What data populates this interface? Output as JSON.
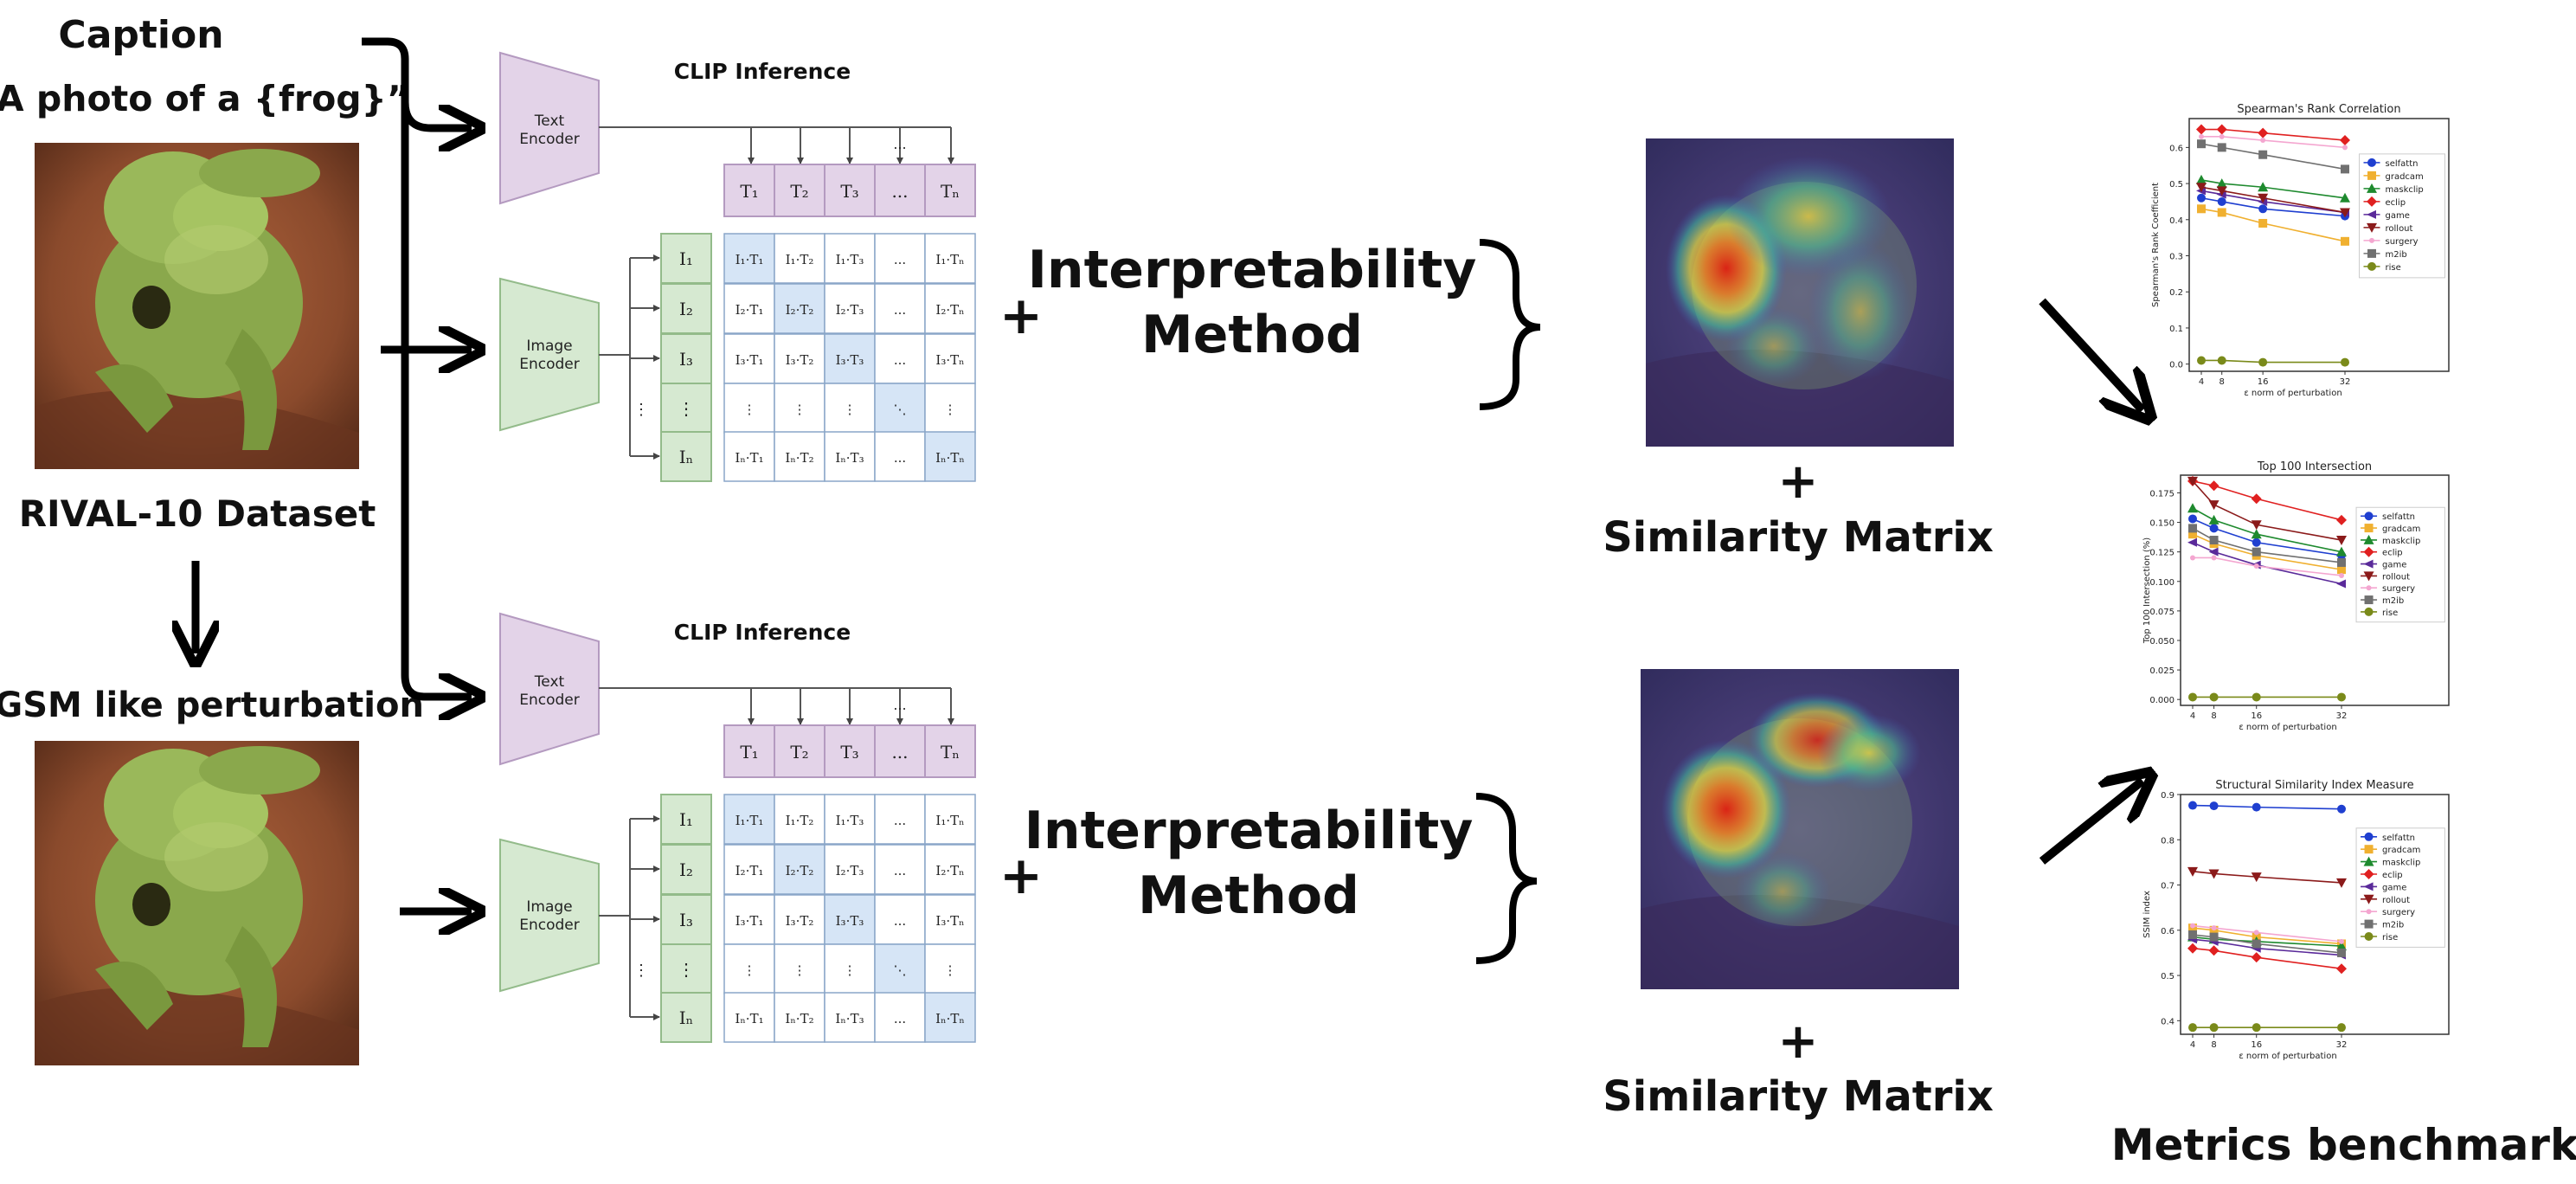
{
  "left": {
    "caption_label": "Caption",
    "caption_text": "“A photo of a {frog}”",
    "dataset_label": "RIVAL-10 Dataset",
    "perturbation_label": "FGSM like perturbation"
  },
  "clip": {
    "title": "CLIP Inference",
    "text_encoder": [
      "Text",
      "Encoder"
    ],
    "image_encoder": [
      "Image",
      "Encoder"
    ],
    "t_headers": [
      "T₁",
      "T₂",
      "T₃",
      "...",
      "Tₙ"
    ],
    "i_headers": [
      "I₁",
      "I₂",
      "I₃",
      "⋮",
      "Iₙ"
    ],
    "matrix": [
      [
        "I₁·T₁",
        "I₁·T₂",
        "I₁·T₃",
        "...",
        "I₁·Tₙ"
      ],
      [
        "I₂·T₁",
        "I₂·T₂",
        "I₂·T₃",
        "...",
        "I₂·Tₙ"
      ],
      [
        "I₃·T₁",
        "I₃·T₂",
        "I₃·T₃",
        "...",
        "I₃·Tₙ"
      ],
      [
        "⋮",
        "⋮",
        "⋮",
        "⋱",
        "⋮"
      ],
      [
        "Iₙ·T₁",
        "Iₙ·T₂",
        "Iₙ·T₃",
        "...",
        "Iₙ·Tₙ"
      ]
    ],
    "dots_label": "..."
  },
  "middle": {
    "plus": "+",
    "method_line1": "Interpretability",
    "method_line2": "Method",
    "similarity_plus": "+",
    "similarity_label": "Similarity Matrix"
  },
  "benchmark_label": "Metrics benchmark",
  "legend_labels": [
    "selfattn",
    "gradcam",
    "maskclip",
    "eclip",
    "game",
    "rollout",
    "surgery",
    "m2ib",
    "rise"
  ],
  "colors": {
    "text_encoder_fill": "#e3d3e8",
    "text_encoder_stroke": "#b49ac0",
    "image_encoder_fill": "#d6e9d1",
    "image_encoder_stroke": "#93bb8a",
    "diag_fill": "#d6e5f6",
    "rock": "#8a4a2c",
    "frog": "#8aa84c"
  },
  "chart_data": [
    {
      "type": "line",
      "title": "Spearman's Rank Correlation",
      "xlabel": "ε norm of perturbation",
      "ylabel": "Spearman's Rank Coefficient",
      "x": [
        4,
        8,
        16,
        32
      ],
      "xticks": [
        "4",
        "8",
        "16",
        "32"
      ],
      "ylim": [
        -0.02,
        0.68
      ],
      "yticks": [
        0.0,
        0.1,
        0.2,
        0.3,
        0.4,
        0.5,
        0.6
      ],
      "ytick_labels": [
        "0.0",
        "0.1",
        "0.2",
        "0.3",
        "0.4",
        "0.5",
        "0.6"
      ],
      "legend": "right",
      "series": [
        {
          "name": "selfattn",
          "color": "#1f3fd0",
          "marker": "o",
          "values": [
            0.46,
            0.45,
            0.43,
            0.41
          ]
        },
        {
          "name": "gradcam",
          "color": "#f0b030",
          "marker": "s",
          "values": [
            0.43,
            0.42,
            0.39,
            0.34
          ]
        },
        {
          "name": "maskclip",
          "color": "#1e8a2e",
          "marker": "^",
          "values": [
            0.51,
            0.5,
            0.49,
            0.46
          ]
        },
        {
          "name": "eclip",
          "color": "#e02020",
          "marker": "D",
          "values": [
            0.65,
            0.65,
            0.64,
            0.62
          ]
        },
        {
          "name": "game",
          "color": "#5a2a9a",
          "marker": "<",
          "values": [
            0.48,
            0.47,
            0.45,
            0.42
          ]
        },
        {
          "name": "rollout",
          "color": "#8b1a1a",
          "marker": "v",
          "values": [
            0.49,
            0.48,
            0.46,
            0.42
          ]
        },
        {
          "name": "surgery",
          "color": "#f4a6d0",
          "marker": ".",
          "values": [
            0.63,
            0.63,
            0.62,
            0.6
          ]
        },
        {
          "name": "m2ib",
          "color": "#707070",
          "marker": "s",
          "values": [
            0.61,
            0.6,
            0.58,
            0.54
          ]
        },
        {
          "name": "rise",
          "color": "#7a8a1a",
          "marker": "o",
          "values": [
            0.01,
            0.01,
            0.005,
            0.005
          ]
        }
      ]
    },
    {
      "type": "line",
      "title": "Top 100 Intersection",
      "xlabel": "ε norm of perturbation",
      "ylabel": "Top 100 Intersection (%)",
      "x": [
        4,
        8,
        16,
        32
      ],
      "xticks": [
        "4",
        "8",
        "16",
        "32"
      ],
      "ylim": [
        -0.005,
        0.19
      ],
      "yticks": [
        0.0,
        0.025,
        0.05,
        0.075,
        0.1,
        0.125,
        0.15,
        0.175
      ],
      "ytick_labels": [
        "0.000",
        "0.025",
        "0.050",
        "0.075",
        "0.100",
        "0.125",
        "0.150",
        "0.175"
      ],
      "legend": "right",
      "series": [
        {
          "name": "selfattn",
          "color": "#1f3fd0",
          "marker": "o",
          "values": [
            0.153,
            0.145,
            0.133,
            0.122
          ]
        },
        {
          "name": "gradcam",
          "color": "#f0b030",
          "marker": "s",
          "values": [
            0.14,
            0.132,
            0.122,
            0.11
          ]
        },
        {
          "name": "maskclip",
          "color": "#1e8a2e",
          "marker": "^",
          "values": [
            0.162,
            0.152,
            0.14,
            0.125
          ]
        },
        {
          "name": "eclip",
          "color": "#e02020",
          "marker": "D",
          "values": [
            0.185,
            0.181,
            0.17,
            0.152
          ]
        },
        {
          "name": "game",
          "color": "#5a2a9a",
          "marker": "<",
          "values": [
            0.133,
            0.125,
            0.114,
            0.098
          ]
        },
        {
          "name": "rollout",
          "color": "#8b1a1a",
          "marker": "v",
          "values": [
            0.185,
            0.165,
            0.148,
            0.135
          ]
        },
        {
          "name": "surgery",
          "color": "#f4a6d0",
          "marker": ".",
          "values": [
            0.12,
            0.12,
            0.113,
            0.105
          ]
        },
        {
          "name": "m2ib",
          "color": "#707070",
          "marker": "s",
          "values": [
            0.145,
            0.135,
            0.125,
            0.116
          ]
        },
        {
          "name": "rise",
          "color": "#7a8a1a",
          "marker": "o",
          "values": [
            0.002,
            0.002,
            0.002,
            0.002
          ]
        }
      ]
    },
    {
      "type": "line",
      "title": "Structural Similarity Index Measure",
      "xlabel": "ε norm of perturbation",
      "ylabel": "SSIM index",
      "x": [
        4,
        8,
        16,
        32
      ],
      "xticks": [
        "4",
        "8",
        "16",
        "32"
      ],
      "ylim": [
        0.37,
        0.9
      ],
      "yticks": [
        0.4,
        0.5,
        0.6,
        0.7,
        0.8,
        0.9
      ],
      "ytick_labels": [
        "0.4",
        "0.5",
        "0.6",
        "0.7",
        "0.8",
        "0.9"
      ],
      "legend": "right",
      "series": [
        {
          "name": "selfattn",
          "color": "#1f3fd0",
          "marker": "o",
          "values": [
            0.876,
            0.875,
            0.872,
            0.868
          ]
        },
        {
          "name": "gradcam",
          "color": "#f0b030",
          "marker": "s",
          "values": [
            0.605,
            0.6,
            0.585,
            0.57
          ]
        },
        {
          "name": "maskclip",
          "color": "#1e8a2e",
          "marker": "^",
          "values": [
            0.585,
            0.58,
            0.575,
            0.565
          ]
        },
        {
          "name": "eclip",
          "color": "#e02020",
          "marker": "D",
          "values": [
            0.56,
            0.555,
            0.54,
            0.515
          ]
        },
        {
          "name": "game",
          "color": "#5a2a9a",
          "marker": "<",
          "values": [
            0.58,
            0.575,
            0.56,
            0.545
          ]
        },
        {
          "name": "rollout",
          "color": "#8b1a1a",
          "marker": "v",
          "values": [
            0.73,
            0.725,
            0.718,
            0.705
          ]
        },
        {
          "name": "surgery",
          "color": "#f4a6d0",
          "marker": ".",
          "values": [
            0.61,
            0.605,
            0.595,
            0.575
          ]
        },
        {
          "name": "m2ib",
          "color": "#707070",
          "marker": "s",
          "values": [
            0.59,
            0.585,
            0.57,
            0.55
          ]
        },
        {
          "name": "rise",
          "color": "#7a8a1a",
          "marker": "o",
          "values": [
            0.385,
            0.385,
            0.385,
            0.385
          ]
        }
      ]
    }
  ]
}
